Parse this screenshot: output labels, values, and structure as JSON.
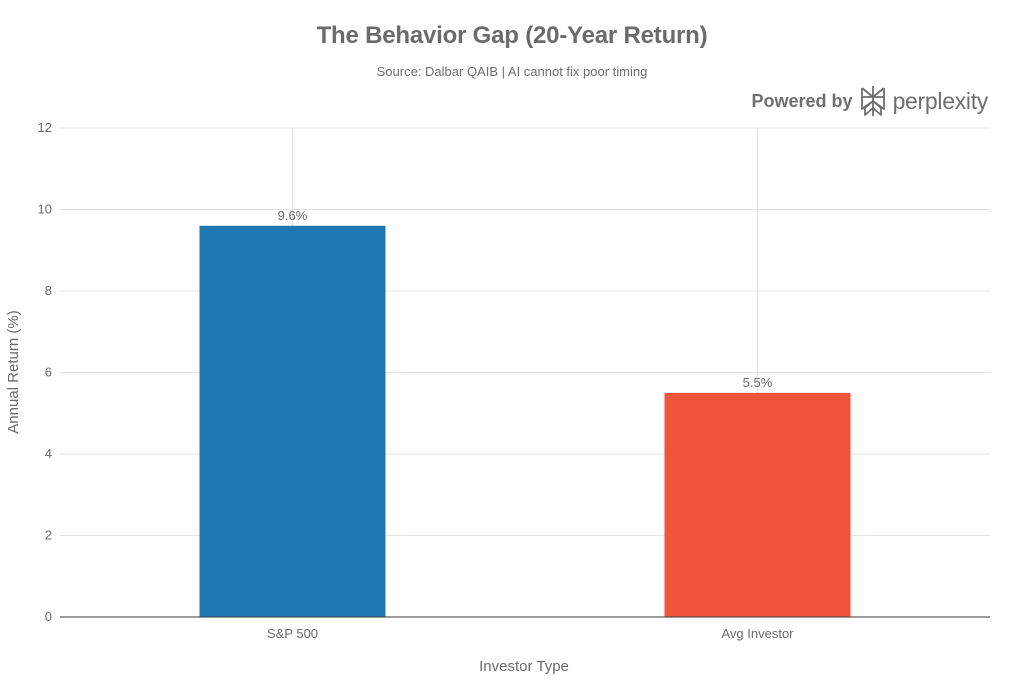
{
  "chart_data": {
    "type": "bar",
    "title": "The Behavior Gap (20-Year Return)",
    "subtitle": "Source: Dalbar QAIB | AI cannot fix poor timing",
    "xlabel": "Investor Type",
    "ylabel": "Annual Return (%)",
    "categories": [
      "S&P 500",
      "Avg Investor"
    ],
    "values": [
      9.6,
      5.5
    ],
    "value_labels": [
      "9.6%",
      "5.5%"
    ],
    "colors": [
      "#1f77b4",
      "#ee553b"
    ],
    "ylim": [
      0,
      12
    ],
    "yticks": [
      0,
      2,
      4,
      6,
      8,
      10,
      12
    ],
    "grid": true
  },
  "brand": {
    "powered_by": "Powered by",
    "name": "perplexity",
    "icon": "perplexity-logo-icon"
  }
}
